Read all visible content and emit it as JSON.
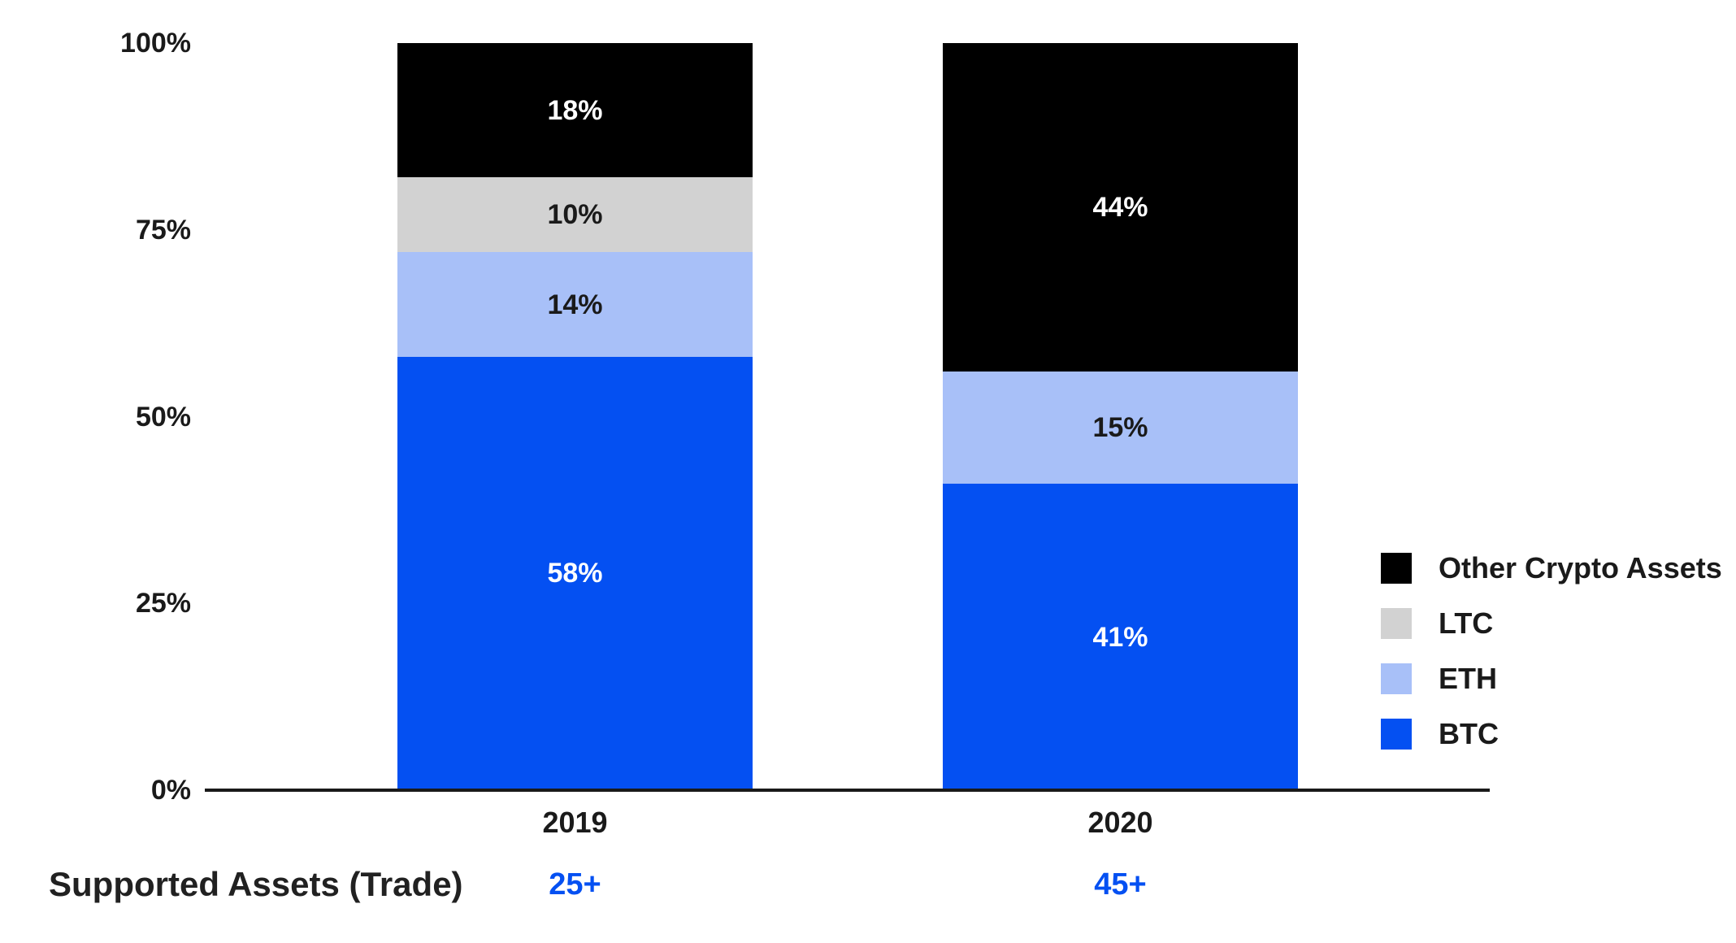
{
  "background": "#FFFFFF",
  "text_color": "#1A1A1A",
  "chart_data": {
    "type": "bar",
    "variant": "stacked-percent",
    "title": "",
    "categories": [
      "2019",
      "2020"
    ],
    "series": [
      {
        "name": "BTC",
        "color": "#0450F2",
        "label_color": "#FFFFFF",
        "values": [
          58,
          41
        ]
      },
      {
        "name": "ETH",
        "color": "#A8C0F8",
        "label_color": "#1A1A1A",
        "values": [
          14,
          15
        ]
      },
      {
        "name": "LTC",
        "color": "#D2D2D2",
        "label_color": "#1A1A1A",
        "values": [
          10,
          0
        ]
      },
      {
        "name": "Other Crypto Assets",
        "color": "#000000",
        "label_color": "#FFFFFF",
        "values": [
          18,
          44
        ]
      }
    ],
    "value_suffix": "%",
    "y_ticks": [
      "0%",
      "25%",
      "50%",
      "75%",
      "100%"
    ],
    "ylim": [
      0,
      100
    ],
    "grid": false,
    "legend_position": "right",
    "legend_order_top_to_bottom": [
      "Other Crypto Assets",
      "LTC",
      "ETH",
      "BTC"
    ]
  },
  "footer": {
    "label": "Supported Assets (Trade)",
    "values": [
      "25+",
      "45+"
    ],
    "value_color": "#0450F2"
  }
}
